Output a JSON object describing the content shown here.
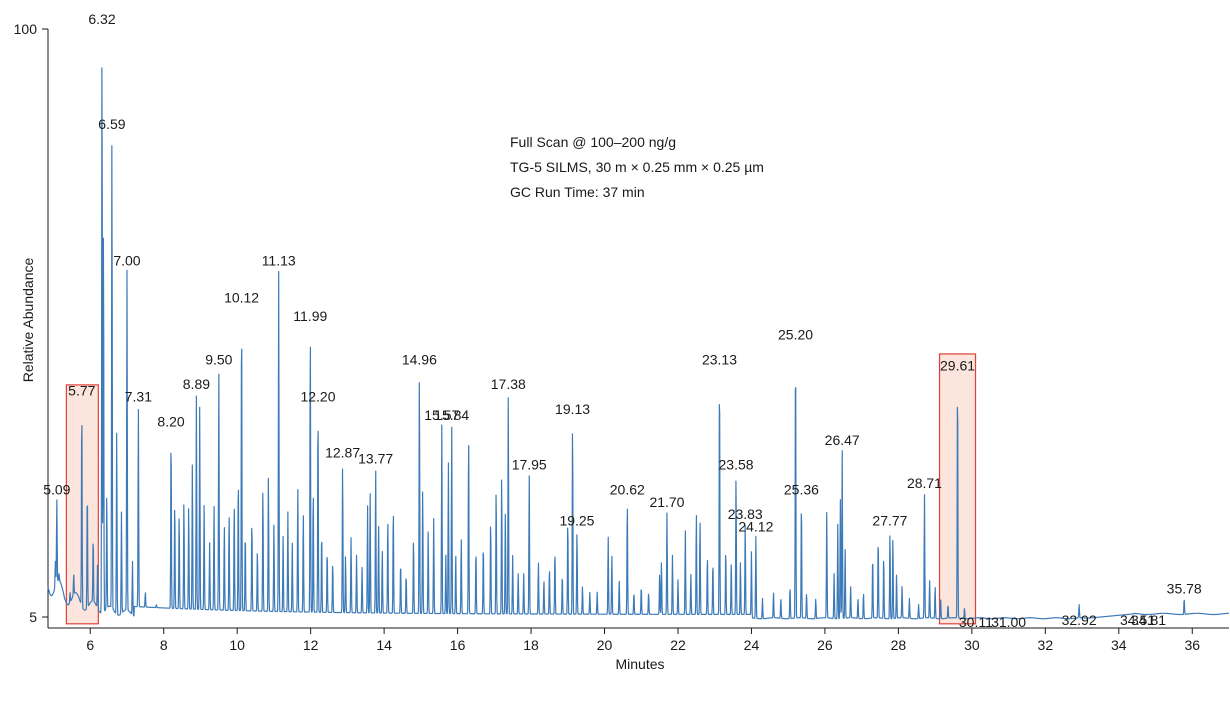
{
  "chart_data": {
    "type": "line",
    "xlabel": "Minutes",
    "ylabel": "Relative Abundance",
    "xlim": [
      4.85,
      37
    ],
    "ylim": [
      4,
      100
    ],
    "x_ticks": [
      "6",
      "8",
      "10",
      "12",
      "14",
      "16",
      "18",
      "20",
      "22",
      "24",
      "26",
      "28",
      "30",
      "32",
      "34",
      "36"
    ],
    "y_ticks": [
      "5",
      "100"
    ],
    "annotations": [
      "Full Scan @ 100–200 ng/g",
      "TG-5 SILMS, 30 m × 0.25 mm × 0.25 µm",
      "GC Run Time: 37 min"
    ],
    "line_color": "#3d7ab8",
    "highlight_color": "#e0403a",
    "highlight_fill": "#fbe5dc",
    "highlights": [
      [
        5.35,
        6.22
      ],
      [
        29.12,
        30.1
      ]
    ],
    "labeled_peaks": [
      {
        "label": "5.09",
        "x": 5.09,
        "y": 24
      },
      {
        "label": "5.77",
        "x": 5.77,
        "y": 40
      },
      {
        "label": "6.32",
        "x": 6.32,
        "y": 100
      },
      {
        "label": "6.59",
        "x": 6.59,
        "y": 83
      },
      {
        "label": "7.00",
        "x": 7.0,
        "y": 61
      },
      {
        "label": "7.31",
        "x": 7.31,
        "y": 39
      },
      {
        "label": "8.20",
        "x": 8.2,
        "y": 35
      },
      {
        "label": "8.89",
        "x": 8.89,
        "y": 41
      },
      {
        "label": "9.50",
        "x": 9.5,
        "y": 45
      },
      {
        "label": "10.12",
        "x": 10.12,
        "y": 55
      },
      {
        "label": "11.13",
        "x": 11.13,
        "y": 61
      },
      {
        "label": "11.99",
        "x": 11.99,
        "y": 52
      },
      {
        "label": "12.20",
        "x": 12.2,
        "y": 39
      },
      {
        "label": "12.87",
        "x": 12.87,
        "y": 30
      },
      {
        "label": "13.77",
        "x": 13.77,
        "y": 29
      },
      {
        "label": "14.96",
        "x": 14.96,
        "y": 45
      },
      {
        "label": "15.57",
        "x": 15.57,
        "y": 36
      },
      {
        "label": "15.84",
        "x": 15.84,
        "y": 36
      },
      {
        "label": "17.38",
        "x": 17.38,
        "y": 41
      },
      {
        "label": "17.95",
        "x": 17.95,
        "y": 28
      },
      {
        "label": "19.13",
        "x": 19.13,
        "y": 37
      },
      {
        "label": "19.25",
        "x": 19.25,
        "y": 19
      },
      {
        "label": "20.62",
        "x": 20.62,
        "y": 24
      },
      {
        "label": "21.70",
        "x": 21.7,
        "y": 22
      },
      {
        "label": "23.13",
        "x": 23.13,
        "y": 45
      },
      {
        "label": "23.58",
        "x": 23.58,
        "y": 28
      },
      {
        "label": "23.83",
        "x": 23.83,
        "y": 20
      },
      {
        "label": "24.12",
        "x": 24.12,
        "y": 18
      },
      {
        "label": "25.20",
        "x": 25.2,
        "y": 49
      },
      {
        "label": "25.36",
        "x": 25.36,
        "y": 24
      },
      {
        "label": "26.47",
        "x": 26.47,
        "y": 32
      },
      {
        "label": "27.77",
        "x": 27.77,
        "y": 19
      },
      {
        "label": "28.71",
        "x": 28.71,
        "y": 25
      },
      {
        "label": "29.61",
        "x": 29.61,
        "y": 44
      },
      {
        "label": "30.11",
        "x": 30.11,
        "y": 5
      },
      {
        "label": "31.00",
        "x": 31.0,
        "y": 5
      },
      {
        "label": "32.92",
        "x": 32.92,
        "y": 5.3
      },
      {
        "label": "34.51",
        "x": 34.51,
        "y": 5.3
      },
      {
        "label": "34.81",
        "x": 34.81,
        "y": 5.3
      },
      {
        "label": "35.78",
        "x": 35.78,
        "y": 8
      }
    ],
    "minor_peaks": [
      [
        5.05,
        14
      ],
      [
        5.15,
        12
      ],
      [
        5.3,
        8
      ],
      [
        5.45,
        9
      ],
      [
        5.55,
        12
      ],
      [
        5.92,
        26
      ],
      [
        6.08,
        18
      ],
      [
        6.2,
        14
      ],
      [
        6.36,
        70
      ],
      [
        6.45,
        25
      ],
      [
        6.72,
        35
      ],
      [
        6.85,
        22
      ],
      [
        7.15,
        14
      ],
      [
        7.5,
        9
      ],
      [
        7.8,
        7
      ],
      [
        8.3,
        24
      ],
      [
        8.42,
        22
      ],
      [
        8.55,
        24
      ],
      [
        8.68,
        23
      ],
      [
        8.78,
        30
      ],
      [
        8.98,
        39
      ],
      [
        9.1,
        23
      ],
      [
        9.25,
        17
      ],
      [
        9.37,
        23
      ],
      [
        9.65,
        20
      ],
      [
        9.78,
        22
      ],
      [
        9.92,
        24
      ],
      [
        10.03,
        28
      ],
      [
        10.22,
        19
      ],
      [
        10.4,
        21
      ],
      [
        10.55,
        16
      ],
      [
        10.7,
        26
      ],
      [
        10.85,
        28
      ],
      [
        11.0,
        20
      ],
      [
        11.25,
        18
      ],
      [
        11.38,
        22
      ],
      [
        11.5,
        17
      ],
      [
        11.65,
        26
      ],
      [
        11.8,
        22
      ],
      [
        12.07,
        26
      ],
      [
        12.3,
        19
      ],
      [
        12.45,
        16
      ],
      [
        12.6,
        14
      ],
      [
        12.95,
        15
      ],
      [
        13.1,
        18
      ],
      [
        13.25,
        15
      ],
      [
        13.4,
        13
      ],
      [
        13.55,
        23
      ],
      [
        13.62,
        25
      ],
      [
        13.85,
        20
      ],
      [
        13.95,
        16
      ],
      [
        14.1,
        21
      ],
      [
        14.25,
        23
      ],
      [
        14.45,
        14
      ],
      [
        14.6,
        12
      ],
      [
        14.8,
        18
      ],
      [
        15.05,
        26
      ],
      [
        15.2,
        19
      ],
      [
        15.35,
        21
      ],
      [
        15.68,
        15
      ],
      [
        15.75,
        30
      ],
      [
        15.95,
        15
      ],
      [
        16.1,
        18
      ],
      [
        16.3,
        35
      ],
      [
        16.5,
        16
      ],
      [
        16.7,
        17
      ],
      [
        16.9,
        21
      ],
      [
        17.05,
        26
      ],
      [
        17.2,
        28
      ],
      [
        17.3,
        22
      ],
      [
        17.5,
        15
      ],
      [
        17.65,
        12
      ],
      [
        17.8,
        12
      ],
      [
        18.2,
        14
      ],
      [
        18.35,
        11
      ],
      [
        18.5,
        13
      ],
      [
        18.65,
        16
      ],
      [
        18.85,
        12
      ],
      [
        19.0,
        21
      ],
      [
        19.4,
        10
      ],
      [
        19.6,
        9
      ],
      [
        19.8,
        9
      ],
      [
        20.1,
        18
      ],
      [
        20.2,
        15
      ],
      [
        20.4,
        11
      ],
      [
        20.8,
        9
      ],
      [
        21.0,
        10
      ],
      [
        21.2,
        9
      ],
      [
        21.5,
        12
      ],
      [
        21.55,
        14
      ],
      [
        21.85,
        15
      ],
      [
        22.0,
        11
      ],
      [
        22.2,
        19
      ],
      [
        22.35,
        12
      ],
      [
        22.5,
        22
      ],
      [
        22.6,
        21
      ],
      [
        22.8,
        15
      ],
      [
        22.95,
        14
      ],
      [
        23.3,
        16
      ],
      [
        23.45,
        14
      ],
      [
        23.7,
        14
      ],
      [
        24.0,
        15
      ],
      [
        24.3,
        8
      ],
      [
        24.6,
        9
      ],
      [
        24.8,
        8
      ],
      [
        25.05,
        10
      ],
      [
        25.5,
        9
      ],
      [
        25.75,
        8
      ],
      [
        26.05,
        22
      ],
      [
        26.25,
        12
      ],
      [
        26.35,
        20
      ],
      [
        26.42,
        24
      ],
      [
        26.55,
        16
      ],
      [
        26.7,
        10
      ],
      [
        26.9,
        8
      ],
      [
        27.05,
        9
      ],
      [
        27.3,
        15
      ],
      [
        27.45,
        18
      ],
      [
        27.6,
        15
      ],
      [
        27.85,
        18
      ],
      [
        27.95,
        12
      ],
      [
        28.1,
        10
      ],
      [
        28.3,
        8
      ],
      [
        28.55,
        7
      ],
      [
        28.85,
        11
      ],
      [
        29.0,
        10
      ],
      [
        29.15,
        8
      ],
      [
        29.35,
        7
      ],
      [
        29.8,
        6.5
      ]
    ]
  }
}
